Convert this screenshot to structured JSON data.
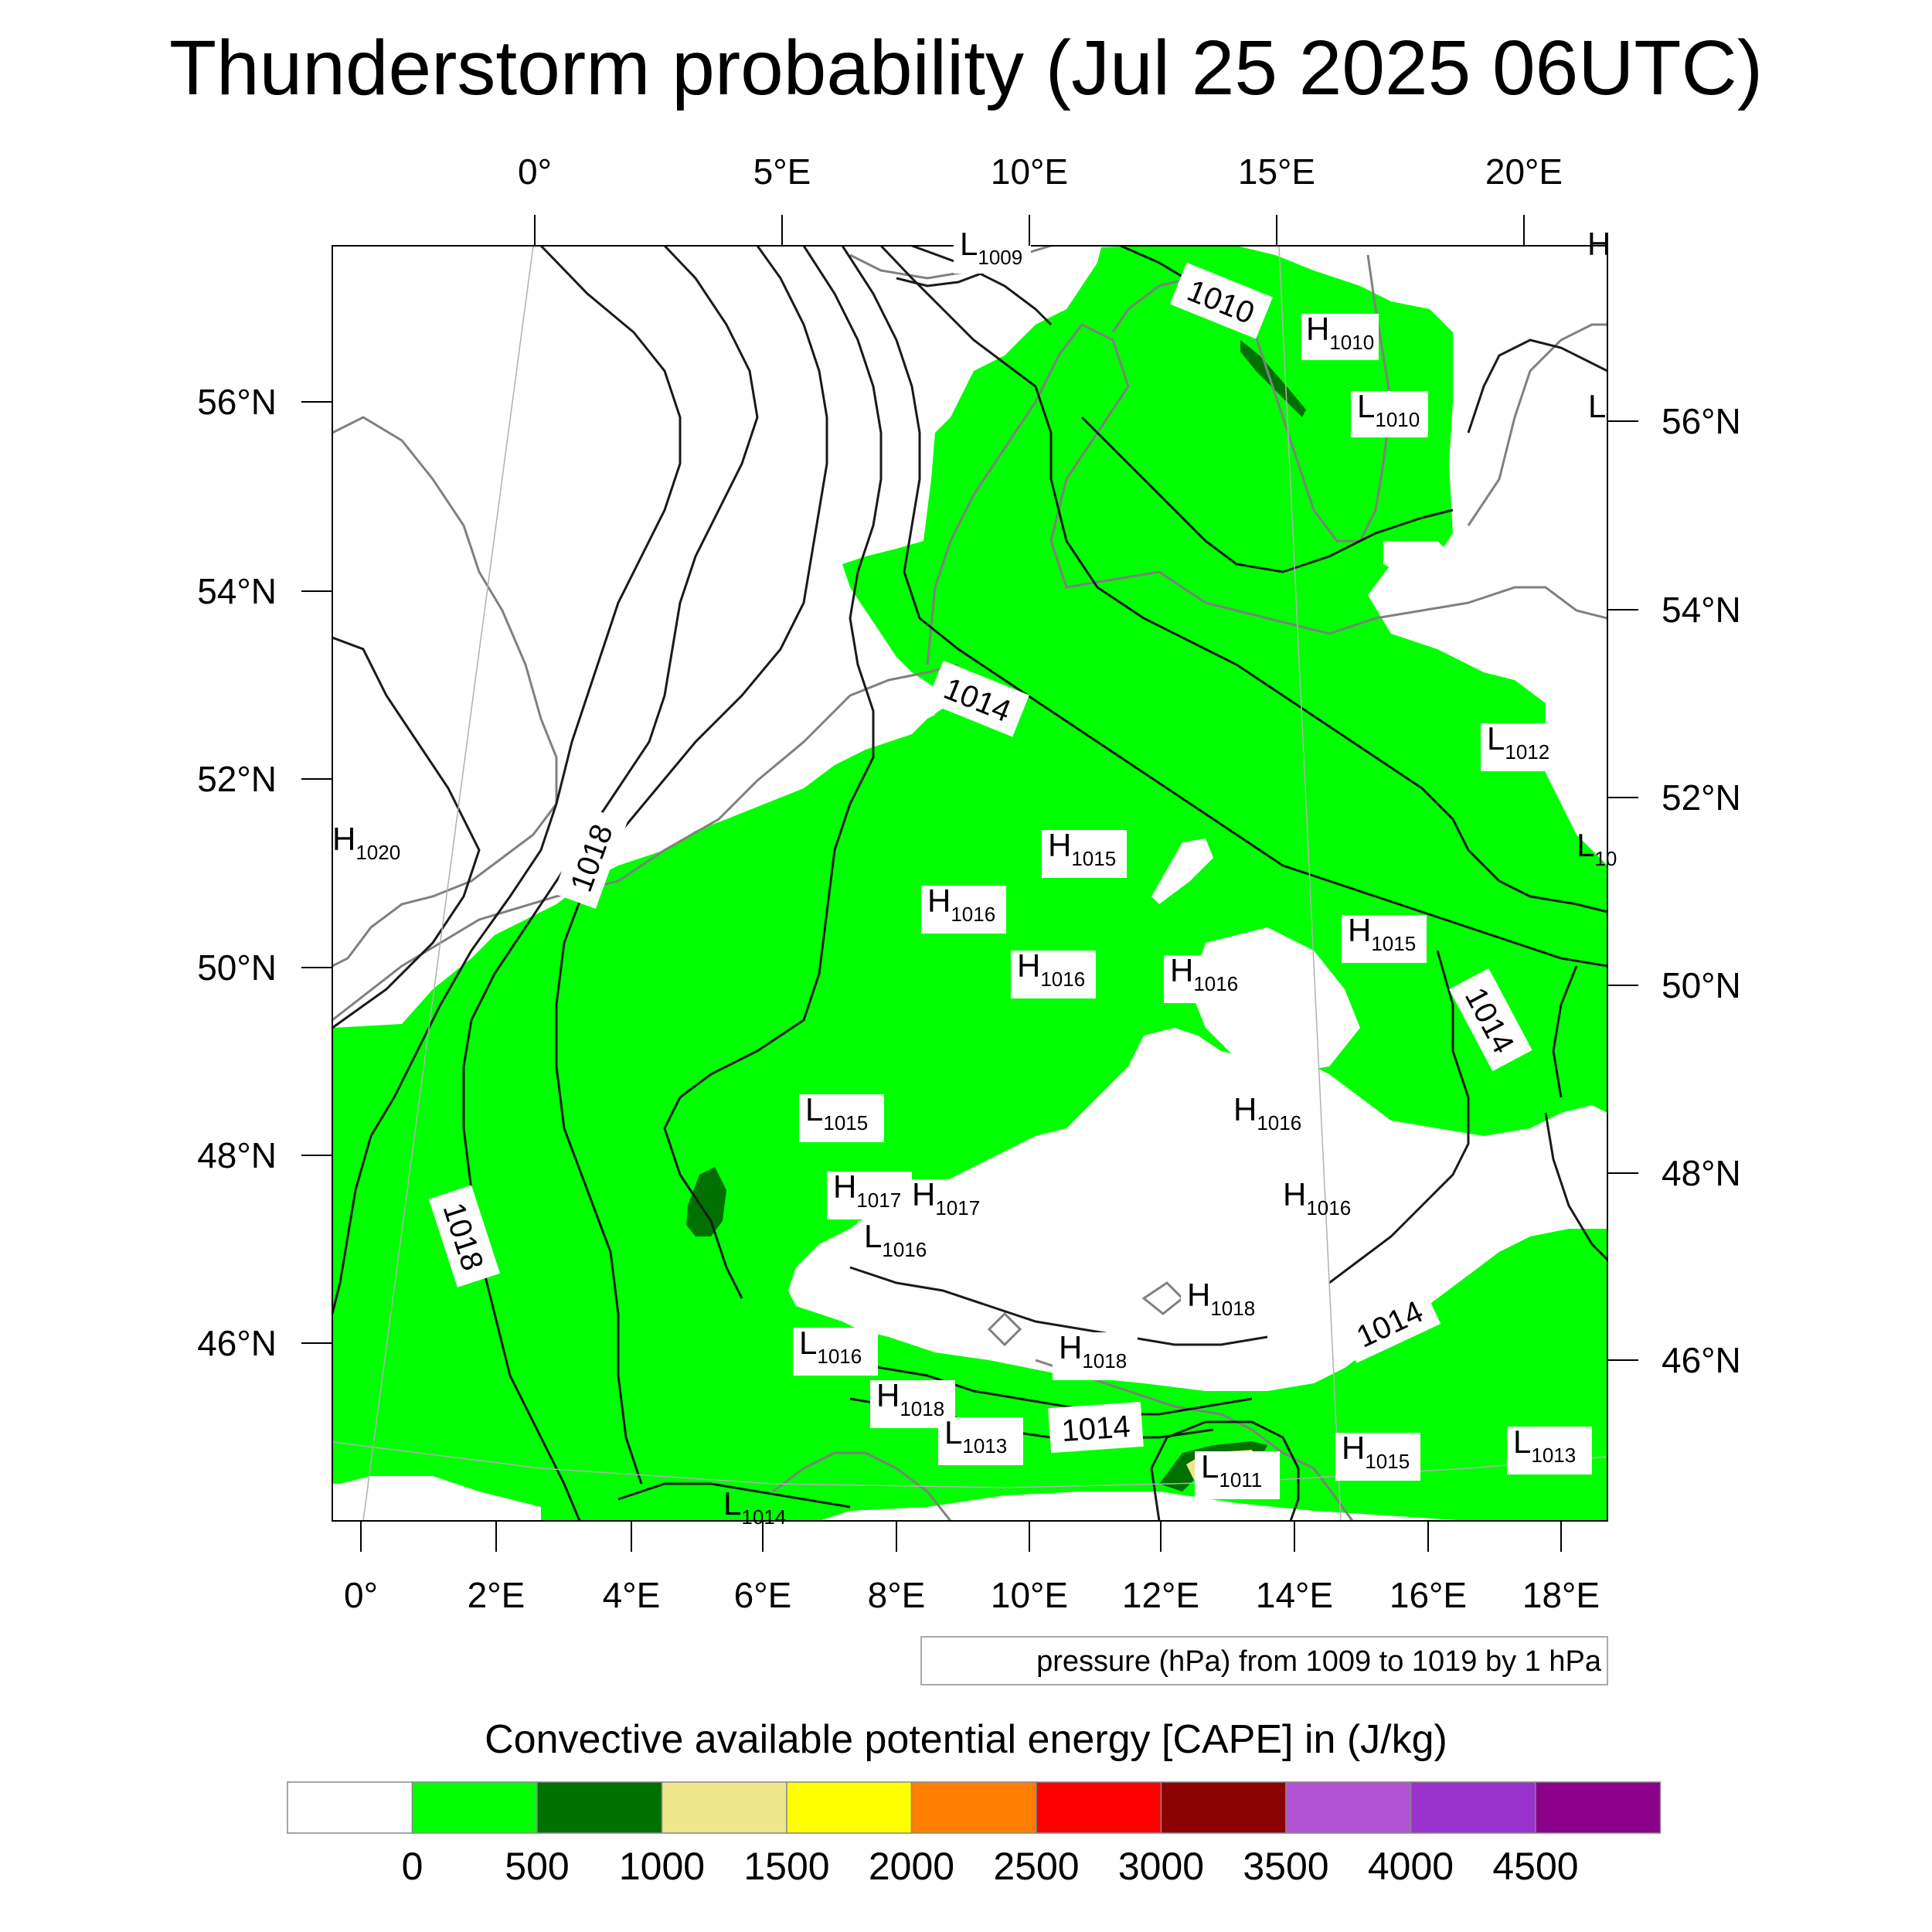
{
  "title": "Thunderstorm probability (Jul 25 2025 06UTC)",
  "colors": {
    "green": "#00ff00",
    "dark_green": "#007000",
    "khaki": "#f0e68c",
    "isobar": "#1a1a1a",
    "coast": "#808080"
  },
  "top_lon_labels": [
    "0°",
    "5°E",
    "10°E",
    "15°E",
    "20°E"
  ],
  "bottom_lon_labels": [
    "0°",
    "2°E",
    "4°E",
    "6°E",
    "8°E",
    "10°E",
    "12°E",
    "14°E",
    "16°E",
    "18°E"
  ],
  "left_lat_labels": [
    "56°N",
    "54°N",
    "52°N",
    "50°N",
    "48°N",
    "46°N"
  ],
  "right_lat_labels": [
    "56°N",
    "54°N",
    "52°N",
    "50°N",
    "48°N",
    "46°N"
  ],
  "contour_labels": [
    "1010",
    "1014",
    "1018",
    "1018",
    "1014",
    "1014",
    "1014"
  ],
  "pressure_centers": [
    {
      "type": "L",
      "value": "1009"
    },
    {
      "type": "H",
      "value": ""
    },
    {
      "type": "H",
      "value": "1010"
    },
    {
      "type": "L",
      "value": "1010"
    },
    {
      "type": "L",
      "value": ""
    },
    {
      "type": "L",
      "value": "1012"
    },
    {
      "type": "H",
      "value": "1020"
    },
    {
      "type": "H",
      "value": "1015"
    },
    {
      "type": "L",
      "value": "10"
    },
    {
      "type": "H",
      "value": "1016"
    },
    {
      "type": "H",
      "value": "1015"
    },
    {
      "type": "H",
      "value": "1016"
    },
    {
      "type": "H",
      "value": "1016"
    },
    {
      "type": "L",
      "value": "1015"
    },
    {
      "type": "H",
      "value": "1016"
    },
    {
      "type": "H",
      "value": "1017"
    },
    {
      "type": "H",
      "value": "1017"
    },
    {
      "type": "H",
      "value": "1016"
    },
    {
      "type": "L",
      "value": "1016"
    },
    {
      "type": "H",
      "value": "1018"
    },
    {
      "type": "L",
      "value": "1016"
    },
    {
      "type": "H",
      "value": "1018"
    },
    {
      "type": "H",
      "value": "1018"
    },
    {
      "type": "L",
      "value": "1013"
    },
    {
      "type": "L",
      "value": "1011"
    },
    {
      "type": "H",
      "value": "1015"
    },
    {
      "type": "L",
      "value": "1013"
    },
    {
      "type": "L",
      "value": "1014"
    }
  ],
  "info_box": "pressure (hPa) from 1009 to 1019 by 1 hPa",
  "colorbar": {
    "title": "Convective available potential energy [CAPE] in (J/kg)",
    "colors": [
      "#ffffff",
      "#00ff00",
      "#007000",
      "#f0e68c",
      "#ffff00",
      "#ff8000",
      "#ff0000",
      "#8b0000",
      "#b452d6",
      "#9932cc",
      "#8b008b"
    ],
    "labels": [
      "0",
      "500",
      "1000",
      "1500",
      "2000",
      "2500",
      "3000",
      "3500",
      "4000",
      "4500"
    ]
  }
}
